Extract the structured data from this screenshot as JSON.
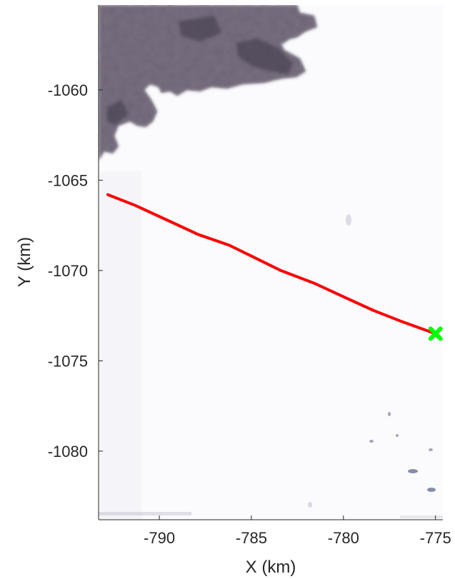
{
  "chart_data": {
    "type": "line",
    "title": "",
    "xlabel": "X (km)",
    "ylabel": "Y (km)",
    "xlim": [
      -793.3,
      -774.6
    ],
    "ylim": [
      -1083.8,
      -1055.3
    ],
    "y_reversed": true,
    "grid": false,
    "x_ticks": [
      -790,
      -785,
      -780,
      -775
    ],
    "y_ticks": [
      -1060,
      -1065,
      -1070,
      -1075,
      -1080
    ],
    "background": "satellite imagery: dark rock terrain in upper-left, white ice elsewhere",
    "series": [
      {
        "color": "#ff0000",
        "x": [
          -792.8,
          -791.3,
          -789.6,
          -787.9,
          -786.2,
          -784.8,
          -783.4,
          -781.6,
          -779.9,
          -778.4,
          -776.9,
          -775.0
        ],
        "y": [
          -1065.8,
          -1066.4,
          -1067.2,
          -1068.0,
          -1068.6,
          -1069.3,
          -1070.0,
          -1070.7,
          -1071.5,
          -1072.2,
          -1072.8,
          -1073.5
        ]
      }
    ],
    "markers": [
      {
        "x": -775.0,
        "y": -1073.5,
        "color": "#00ff00",
        "shape": "x"
      }
    ]
  }
}
